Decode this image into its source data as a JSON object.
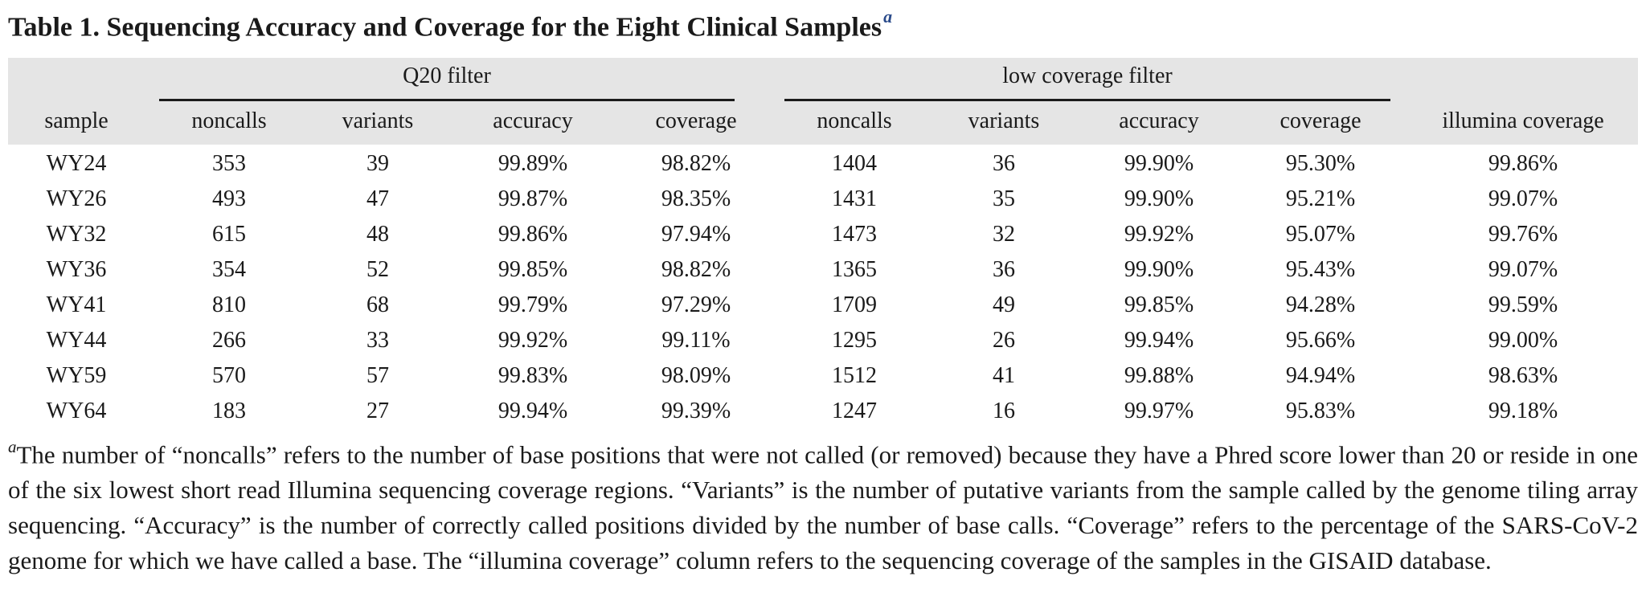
{
  "title": {
    "text": "Table 1. Sequencing Accuracy and Coverage for the Eight Clinical Samples",
    "footnote_marker": "a"
  },
  "table": {
    "groups": [
      {
        "label": "Q20 filter"
      },
      {
        "label": "low coverage filter"
      }
    ],
    "columns": [
      "sample",
      "noncalls",
      "variants",
      "accuracy",
      "coverage",
      "noncalls",
      "variants",
      "accuracy",
      "coverage",
      "illumina coverage"
    ],
    "rows": [
      [
        "WY24",
        "353",
        "39",
        "99.89%",
        "98.82%",
        "1404",
        "36",
        "99.90%",
        "95.30%",
        "99.86%"
      ],
      [
        "WY26",
        "493",
        "47",
        "99.87%",
        "98.35%",
        "1431",
        "35",
        "99.90%",
        "95.21%",
        "99.07%"
      ],
      [
        "WY32",
        "615",
        "48",
        "99.86%",
        "97.94%",
        "1473",
        "32",
        "99.92%",
        "95.07%",
        "99.76%"
      ],
      [
        "WY36",
        "354",
        "52",
        "99.85%",
        "98.82%",
        "1365",
        "36",
        "99.90%",
        "95.43%",
        "99.07%"
      ],
      [
        "WY41",
        "810",
        "68",
        "99.79%",
        "97.29%",
        "1709",
        "49",
        "99.85%",
        "94.28%",
        "99.59%"
      ],
      [
        "WY44",
        "266",
        "33",
        "99.92%",
        "99.11%",
        "1295",
        "26",
        "99.94%",
        "95.66%",
        "99.00%"
      ],
      [
        "WY59",
        "570",
        "57",
        "99.83%",
        "98.09%",
        "1512",
        "41",
        "99.88%",
        "94.94%",
        "98.63%"
      ],
      [
        "WY64",
        "183",
        "27",
        "99.94%",
        "99.39%",
        "1247",
        "16",
        "99.97%",
        "95.83%",
        "99.18%"
      ]
    ]
  },
  "footnote": {
    "marker": "a",
    "text": "The number of “noncalls” refers to the number of base positions that were not called (or removed) because they have a Phred score lower than 20 or reside in one of the six lowest short read Illumina sequencing coverage regions. “Variants” is the number of putative variants from the sample called by the genome tiling array sequencing. “Accuracy” is the number of correctly called positions divided by the number of base calls. “Coverage” refers to the percentage of the SARS-CoV-2 genome for which we have called a base. The “illumina coverage” column refers to the sequencing coverage of the samples in the GISAID database."
  }
}
